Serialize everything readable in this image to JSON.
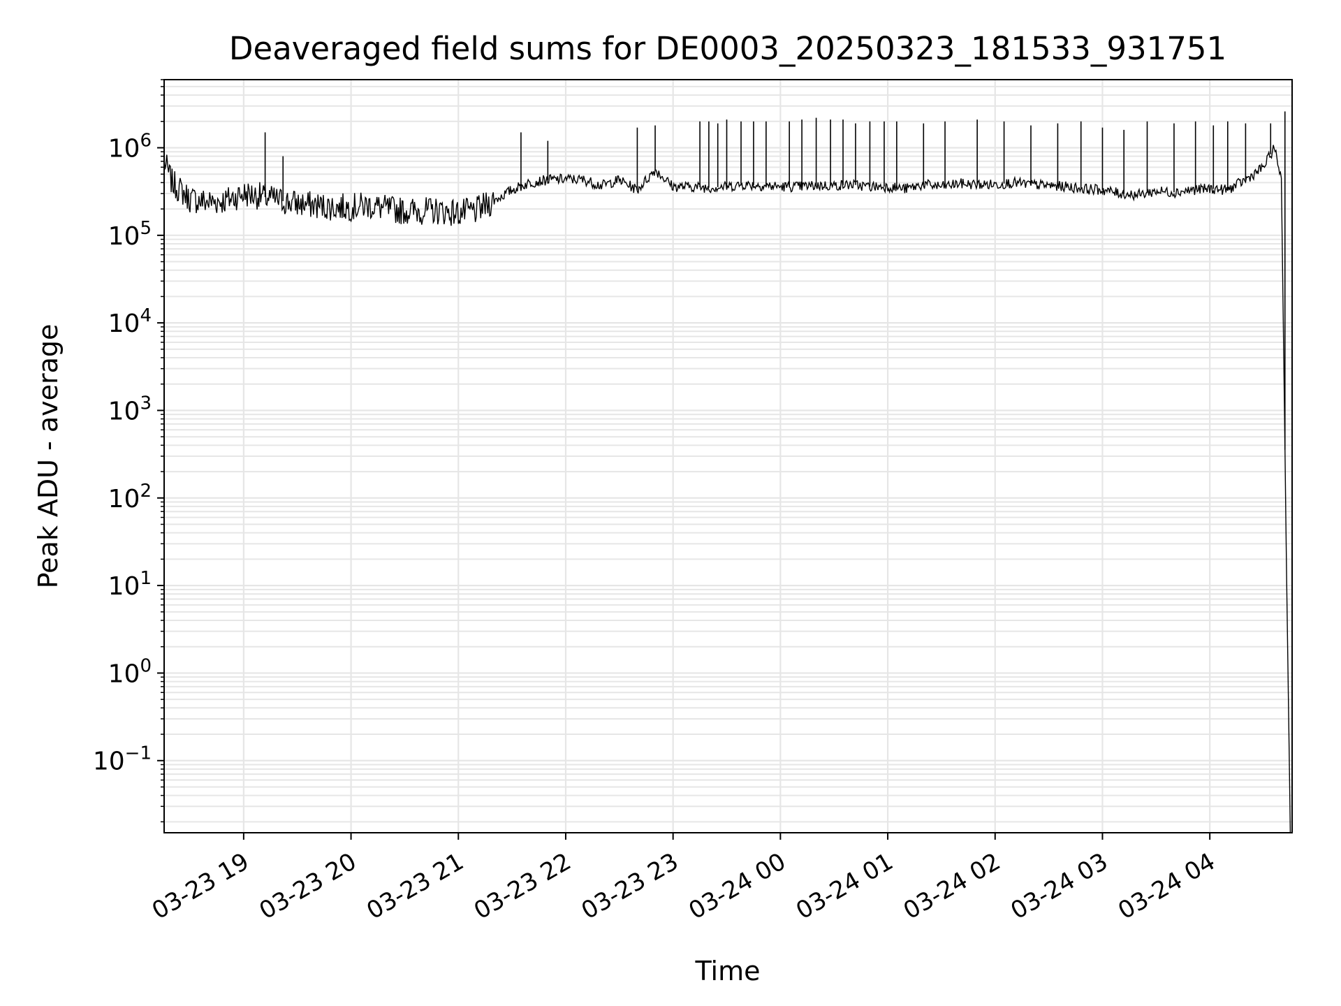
{
  "chart_data": {
    "type": "line",
    "title": "Deaveraged field sums for DE0003_20250323_181533_931751",
    "xlabel": "Time",
    "ylabel": "Peak ADU - average",
    "x_scale": "time",
    "y_scale": "log",
    "xlim": [
      "2025-03-23 18:15:33",
      "2025-03-24 04:46:00"
    ],
    "ylim": [
      0.015,
      6000000
    ],
    "x_ticks": [
      {
        "value": "2025-03-23 19:00",
        "label": "03-23 19"
      },
      {
        "value": "2025-03-23 20:00",
        "label": "03-23 20"
      },
      {
        "value": "2025-03-23 21:00",
        "label": "03-23 21"
      },
      {
        "value": "2025-03-23 22:00",
        "label": "03-23 22"
      },
      {
        "value": "2025-03-23 23:00",
        "label": "03-23 23"
      },
      {
        "value": "2025-03-24 00:00",
        "label": "03-24 00"
      },
      {
        "value": "2025-03-24 01:00",
        "label": "03-24 01"
      },
      {
        "value": "2025-03-24 02:00",
        "label": "03-24 02"
      },
      {
        "value": "2025-03-24 03:00",
        "label": "03-24 03"
      },
      {
        "value": "2025-03-24 04:00",
        "label": "03-24 04"
      }
    ],
    "y_ticks": [
      {
        "value": 0.1,
        "base": "10",
        "exp": "−1"
      },
      {
        "value": 1,
        "base": "10",
        "exp": "0"
      },
      {
        "value": 10,
        "base": "10",
        "exp": "1"
      },
      {
        "value": 100,
        "base": "10",
        "exp": "2"
      },
      {
        "value": 1000,
        "base": "10",
        "exp": "3"
      },
      {
        "value": 10000,
        "base": "10",
        "exp": "4"
      },
      {
        "value": 100000,
        "base": "10",
        "exp": "5"
      },
      {
        "value": 1000000,
        "base": "10",
        "exp": "6"
      }
    ],
    "grid": true,
    "line_color": "#000000",
    "grid_color": "#e6e6e6",
    "series": [
      {
        "x": [
          "2025-03-23 18:15:33",
          "2025-03-23 18:20",
          "2025-03-23 18:30",
          "2025-03-23 18:40",
          "2025-03-23 18:50",
          "2025-03-23 19:00",
          "2025-03-23 19:10",
          "2025-03-23 19:20",
          "2025-03-23 19:30",
          "2025-03-23 19:40",
          "2025-03-23 19:50",
          "2025-03-23 20:00",
          "2025-03-23 20:10",
          "2025-03-23 20:20",
          "2025-03-23 20:30",
          "2025-03-23 20:40",
          "2025-03-23 20:50",
          "2025-03-23 21:00",
          "2025-03-23 21:10",
          "2025-03-23 21:20",
          "2025-03-23 21:30",
          "2025-03-23 21:40",
          "2025-03-23 21:50",
          "2025-03-23 22:00",
          "2025-03-23 22:10",
          "2025-03-23 22:20",
          "2025-03-23 22:30",
          "2025-03-23 22:40",
          "2025-03-23 22:50",
          "2025-03-23 23:00",
          "2025-03-23 23:10",
          "2025-03-23 23:20",
          "2025-03-23 23:30",
          "2025-03-23 23:40",
          "2025-03-23 23:50",
          "2025-03-24 00:00",
          "2025-03-24 00:10",
          "2025-03-24 00:20",
          "2025-03-24 00:30",
          "2025-03-24 00:40",
          "2025-03-24 00:50",
          "2025-03-24 01:00",
          "2025-03-24 01:10",
          "2025-03-24 01:20",
          "2025-03-24 01:30",
          "2025-03-24 01:40",
          "2025-03-24 01:50",
          "2025-03-24 02:00",
          "2025-03-24 02:10",
          "2025-03-24 02:20",
          "2025-03-24 02:30",
          "2025-03-24 02:40",
          "2025-03-24 02:50",
          "2025-03-24 03:00",
          "2025-03-24 03:10",
          "2025-03-24 03:20",
          "2025-03-24 03:30",
          "2025-03-24 03:40",
          "2025-03-24 03:50",
          "2025-03-24 04:00",
          "2025-03-24 04:10",
          "2025-03-24 04:20",
          "2025-03-24 04:30",
          "2025-03-24 04:36",
          "2025-03-24 04:40",
          "2025-03-24 04:43",
          "2025-03-24 04:45"
        ],
        "y": [
          700000,
          400000,
          260000,
          240000,
          250000,
          300000,
          280000,
          250000,
          230000,
          220000,
          210000,
          210000,
          220000,
          200000,
          190000,
          190000,
          190000,
          180000,
          190000,
          250000,
          330000,
          400000,
          430000,
          440000,
          430000,
          370000,
          430000,
          330000,
          560000,
          360000,
          360000,
          350000,
          360000,
          380000,
          370000,
          360000,
          360000,
          370000,
          370000,
          380000,
          360000,
          360000,
          340000,
          380000,
          360000,
          390000,
          380000,
          380000,
          400000,
          380000,
          370000,
          360000,
          340000,
          330000,
          300000,
          290000,
          320000,
          310000,
          330000,
          340000,
          330000,
          430000,
          600000,
          1000000,
          450000,
          10,
          0.015
        ]
      }
    ],
    "spikes": {
      "x": [
        "2025-03-23 19:12",
        "2025-03-23 19:22",
        "2025-03-23 21:35",
        "2025-03-23 21:50",
        "2025-03-23 22:40",
        "2025-03-23 22:50",
        "2025-03-23 23:15",
        "2025-03-23 23:20",
        "2025-03-23 23:25",
        "2025-03-23 23:30",
        "2025-03-23 23:38",
        "2025-03-23 23:45",
        "2025-03-23 23:52",
        "2025-03-24 00:05",
        "2025-03-24 00:12",
        "2025-03-24 00:20",
        "2025-03-24 00:28",
        "2025-03-24 00:35",
        "2025-03-24 00:42",
        "2025-03-24 00:50",
        "2025-03-24 00:58",
        "2025-03-24 01:05",
        "2025-03-24 01:20",
        "2025-03-24 01:32",
        "2025-03-24 01:50",
        "2025-03-24 02:05",
        "2025-03-24 02:20",
        "2025-03-24 02:35",
        "2025-03-24 02:48",
        "2025-03-24 03:00",
        "2025-03-24 03:12",
        "2025-03-24 03:25",
        "2025-03-24 03:40",
        "2025-03-24 03:52",
        "2025-03-24 04:02",
        "2025-03-24 04:10",
        "2025-03-24 04:20",
        "2025-03-24 04:34",
        "2025-03-24 04:42"
      ],
      "y": [
        1500000,
        800000,
        1500000,
        1200000,
        1700000,
        1800000,
        2000000,
        2000000,
        1900000,
        2100000,
        2000000,
        2000000,
        2000000,
        2000000,
        2100000,
        2200000,
        2100000,
        2100000,
        1900000,
        2000000,
        2000000,
        2000000,
        1900000,
        2000000,
        2100000,
        2000000,
        1800000,
        1900000,
        2000000,
        1700000,
        1600000,
        2000000,
        1900000,
        2000000,
        1800000,
        2000000,
        1900000,
        1900000,
        2600000
      ]
    }
  }
}
